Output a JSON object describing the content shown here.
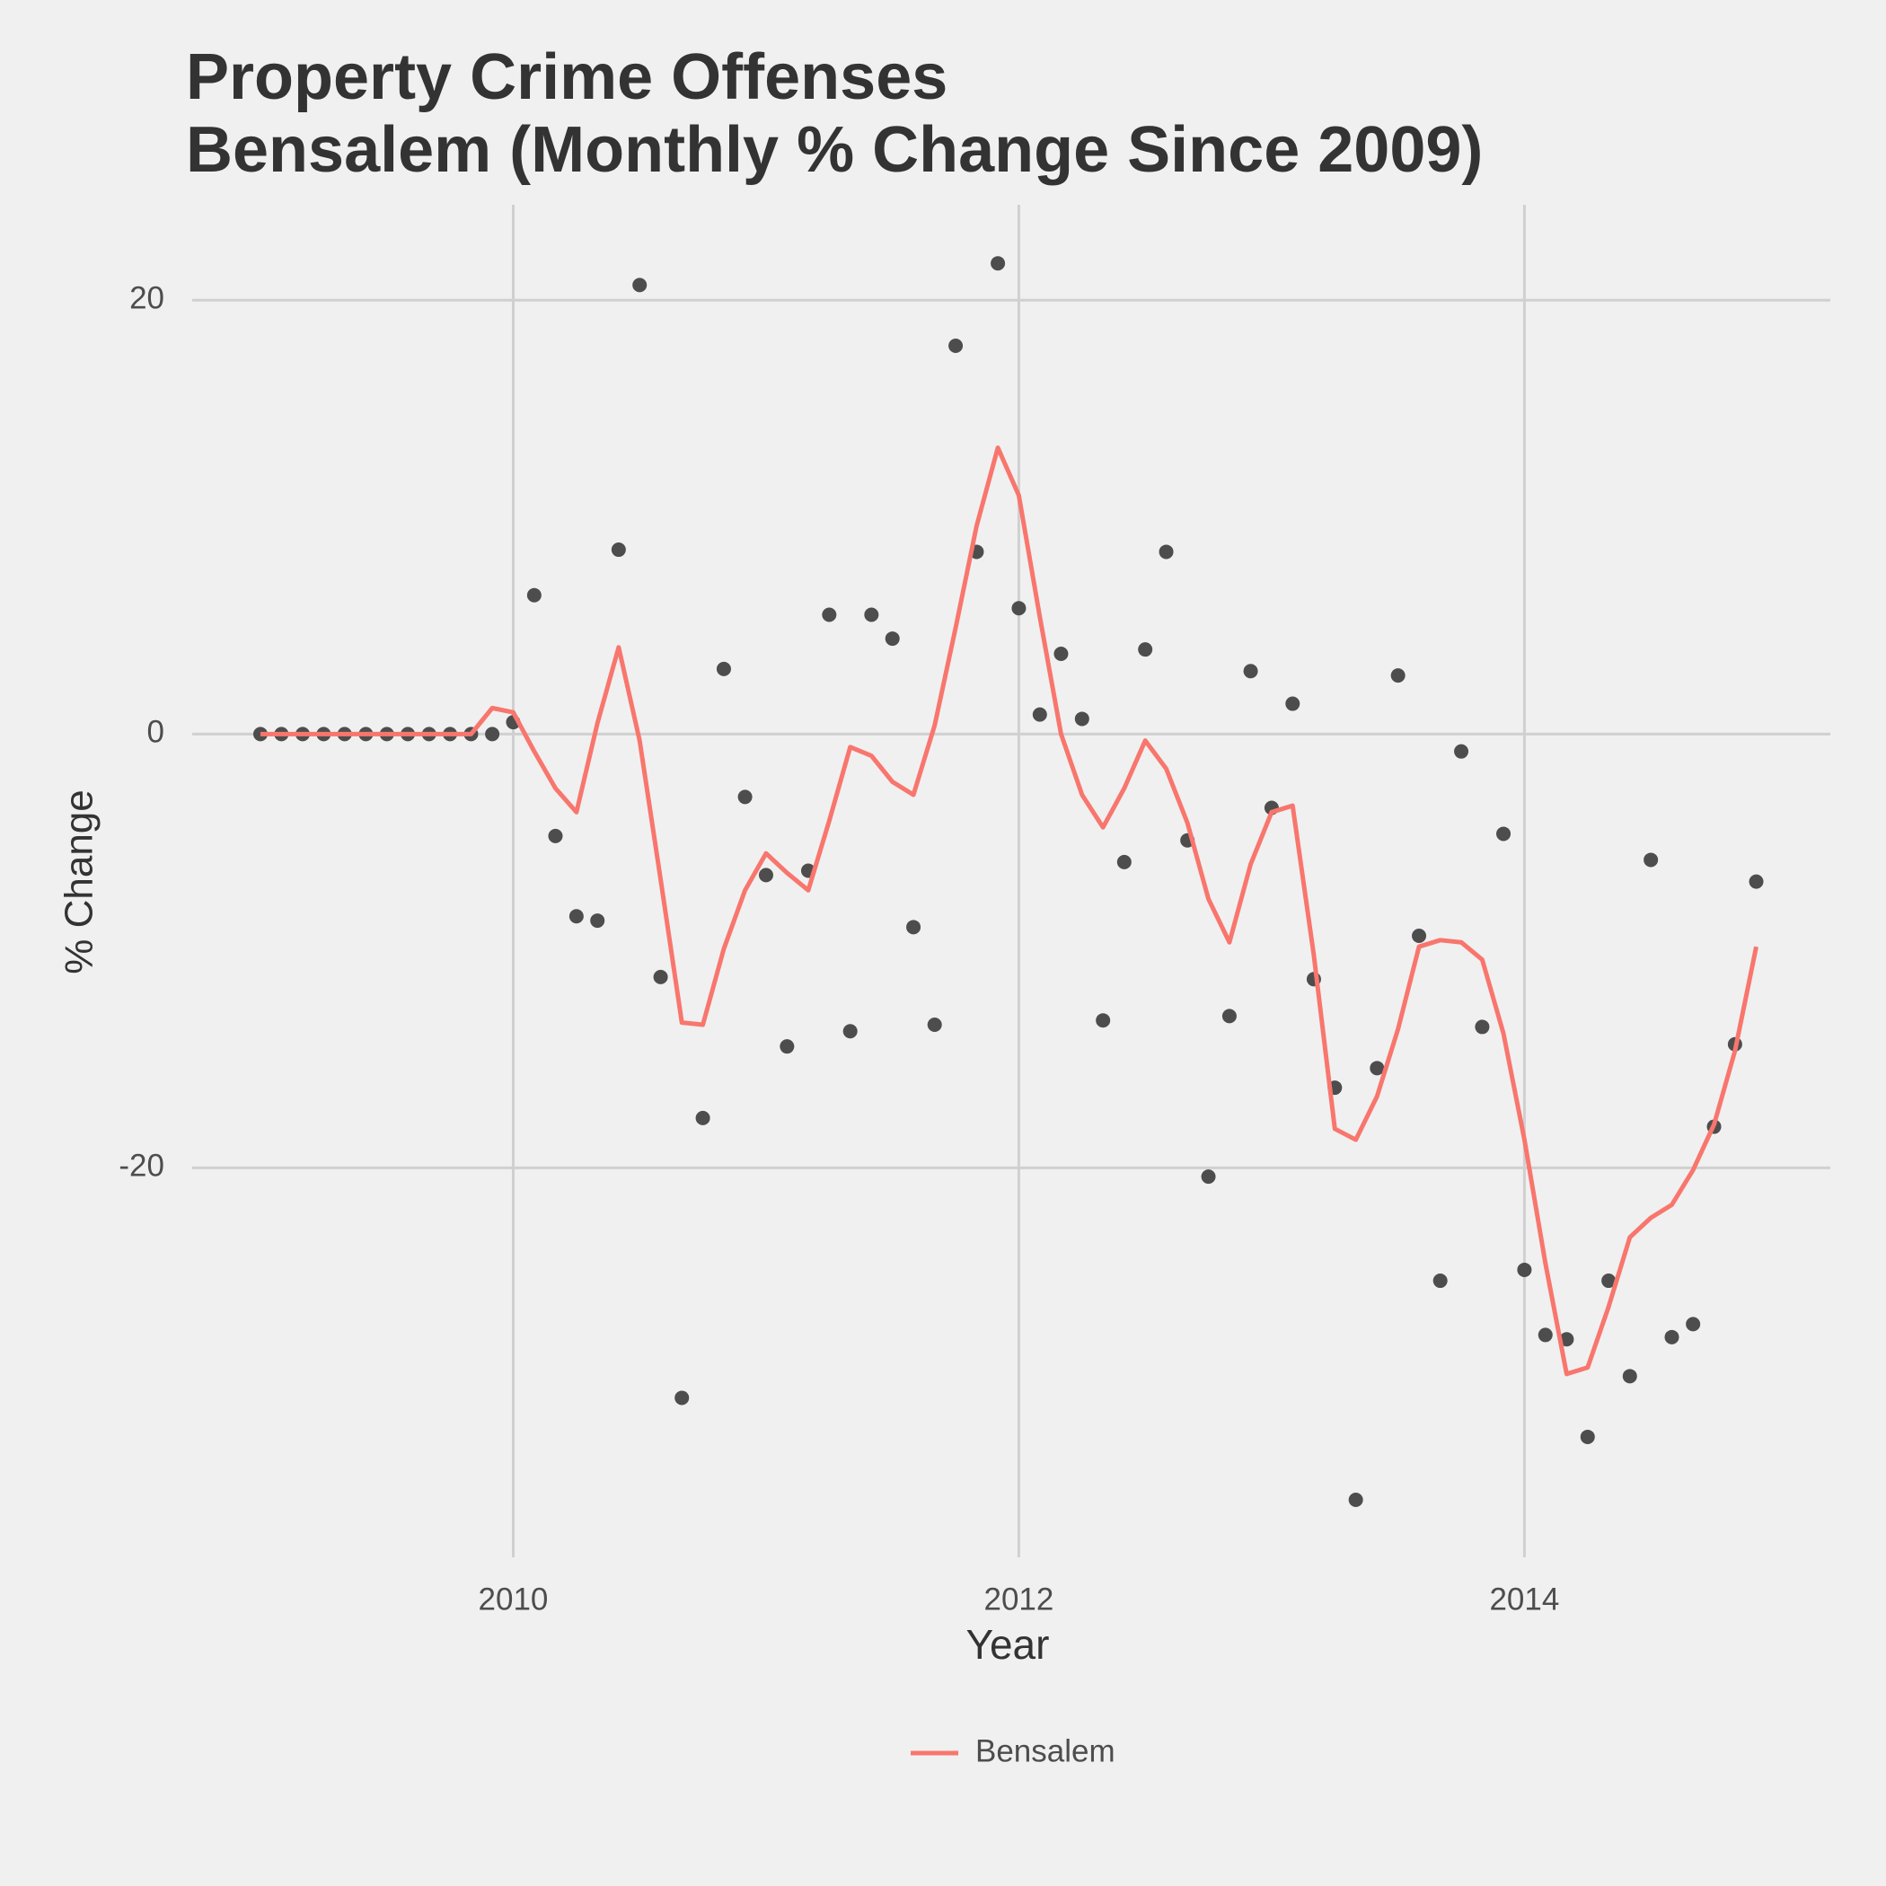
{
  "chart_data": {
    "type": "line",
    "title": [
      "Property Crime Offenses",
      "Bensalem (Monthly % Change Since 2009)"
    ],
    "x_label": "Year",
    "y_label": "% Change",
    "x": [
      2009,
      2009.083,
      2009.167,
      2009.25,
      2009.333,
      2009.417,
      2009.5,
      2009.583,
      2009.667,
      2009.75,
      2009.833,
      2009.917,
      2010,
      2010.083,
      2010.167,
      2010.25,
      2010.333,
      2010.417,
      2010.5,
      2010.583,
      2010.667,
      2010.75,
      2010.833,
      2010.917,
      2011,
      2011.083,
      2011.167,
      2011.25,
      2011.333,
      2011.417,
      2011.5,
      2011.583,
      2011.667,
      2011.75,
      2011.833,
      2011.917,
      2012,
      2012.083,
      2012.167,
      2012.25,
      2012.333,
      2012.417,
      2012.5,
      2012.583,
      2012.667,
      2012.75,
      2012.833,
      2012.917,
      2013,
      2013.083,
      2013.167,
      2013.25,
      2013.333,
      2013.417,
      2013.5,
      2013.583,
      2013.667,
      2013.75,
      2013.833,
      2013.917,
      2014,
      2014.083,
      2014.167,
      2014.25,
      2014.333,
      2014.417,
      2014.5,
      2014.583,
      2014.667,
      2014.75,
      2014.833,
      2014.917
    ],
    "series": [
      {
        "type": "scatter",
        "color": "#4d4d4d",
        "values": [
          0,
          0,
          0,
          0,
          0,
          0,
          0,
          0,
          0,
          0,
          0,
          0,
          0.55,
          6.4,
          -4.7,
          -8.4,
          -8.6,
          8.5,
          20.7,
          -11.2,
          -30.6,
          -17.7,
          3.0,
          -2.9,
          -6.5,
          -14.4,
          -6.3,
          5.5,
          -13.7,
          5.5,
          4.4,
          -8.9,
          -13.4,
          17.9,
          8.4,
          21.7,
          5.8,
          0.9,
          3.7,
          0.7,
          -13.2,
          -5.9,
          3.9,
          8.4,
          -4.9,
          -20.4,
          -13.0,
          2.9,
          -3.4,
          1.4,
          -11.3,
          -16.3,
          -35.3,
          -15.4,
          2.7,
          -9.3,
          -25.2,
          -0.8,
          -13.5,
          -4.6,
          -24.7,
          -27.7,
          -27.9,
          -32.4,
          -25.2,
          -29.6,
          -5.8,
          -27.8,
          -27.2,
          -18.1,
          -14.3,
          -6.8
        ]
      },
      {
        "type": "line",
        "name": "Bensalem",
        "color": "#f8766d",
        "values": [
          0,
          0,
          0,
          0,
          0,
          0,
          0,
          0,
          0,
          0,
          0,
          1.2,
          1.0,
          -0.8,
          -2.5,
          -3.6,
          0.5,
          4.0,
          -0.3,
          -6.7,
          -13.3,
          -13.4,
          -9.9,
          -7.2,
          -5.5,
          -6.4,
          -7.2,
          -4.0,
          -0.6,
          -1.0,
          -2.2,
          -2.8,
          0.4,
          4.9,
          9.6,
          13.2,
          11.0,
          5.4,
          0.0,
          -2.8,
          -4.3,
          -2.5,
          -0.3,
          -1.6,
          -4.1,
          -7.6,
          -9.6,
          -6.0,
          -3.6,
          -3.3,
          -10.2,
          -18.2,
          -18.7,
          -16.7,
          -13.6,
          -9.8,
          -9.5,
          -9.6,
          -10.4,
          -13.8,
          -18.7,
          -24.4,
          -29.5,
          -29.2,
          -26.4,
          -23.2,
          -22.3,
          -21.7,
          -20.1,
          -18.0,
          -14.6,
          -9.8
        ]
      }
    ],
    "xlim": [
      2008.73,
      2015.21
    ],
    "ylim": [
      -37.95,
      24.4
    ],
    "xticks": [
      2010,
      2012,
      2014
    ],
    "yticks": [
      -20,
      0,
      20
    ],
    "grid": true,
    "legend": "bottom"
  }
}
